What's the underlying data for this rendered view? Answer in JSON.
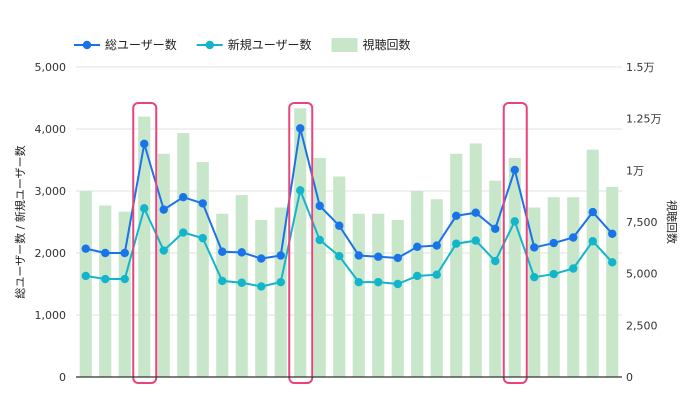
{
  "chart_data": {
    "type": "bar+line",
    "legend_position": "top-left",
    "grid": true,
    "categories_count": 28,
    "series": [
      {
        "name": "総ユーザー数",
        "type": "line",
        "axis": "left",
        "color": "#1a73e8",
        "values": [
          2070,
          2000,
          2000,
          3760,
          2700,
          2900,
          2800,
          2020,
          2010,
          1910,
          1960,
          4010,
          2760,
          2440,
          1960,
          1940,
          1920,
          2100,
          2120,
          2600,
          2650,
          2390,
          3340,
          2090,
          2160,
          2250,
          2660,
          2310
        ]
      },
      {
        "name": "新規ユーザー数",
        "type": "line",
        "axis": "left",
        "color": "#12b5cb",
        "values": [
          1630,
          1580,
          1580,
          2720,
          2040,
          2330,
          2240,
          1550,
          1520,
          1460,
          1530,
          3010,
          2210,
          1950,
          1530,
          1530,
          1500,
          1630,
          1650,
          2150,
          2200,
          1870,
          2510,
          1610,
          1660,
          1750,
          2190,
          1850
        ]
      },
      {
        "name": "視聴回数",
        "type": "bar",
        "axis": "right",
        "color": "#c8e6c9",
        "values": [
          9000,
          8300,
          8000,
          12600,
          10800,
          11800,
          10400,
          7900,
          8800,
          7600,
          8200,
          13000,
          10600,
          9700,
          7900,
          7900,
          7600,
          9000,
          8600,
          10800,
          11300,
          9500,
          10600,
          8200,
          8700,
          8700,
          11000,
          9200
        ]
      }
    ],
    "y_left": {
      "label": "総ユーザー数 / 新規ユーザー数",
      "min": 0,
      "max": 5000,
      "ticks": [
        0,
        1000,
        2000,
        3000,
        4000,
        5000
      ],
      "tick_labels": [
        "0",
        "1,000",
        "2,000",
        "3,000",
        "4,000",
        "5,000"
      ]
    },
    "y_right": {
      "label": "視聴回数",
      "min": 0,
      "max": 15000,
      "ticks": [
        0,
        2500,
        5000,
        7500,
        10000,
        12500,
        15000
      ],
      "tick_labels": [
        "0",
        "2,500",
        "5,000",
        "7,500",
        "1万",
        "1.25万",
        "1.5万"
      ]
    },
    "highlights": [
      {
        "index": 3,
        "color": "#e8437a"
      },
      {
        "index": 11,
        "color": "#e8437a"
      },
      {
        "index": 22,
        "color": "#e8437a"
      }
    ]
  }
}
